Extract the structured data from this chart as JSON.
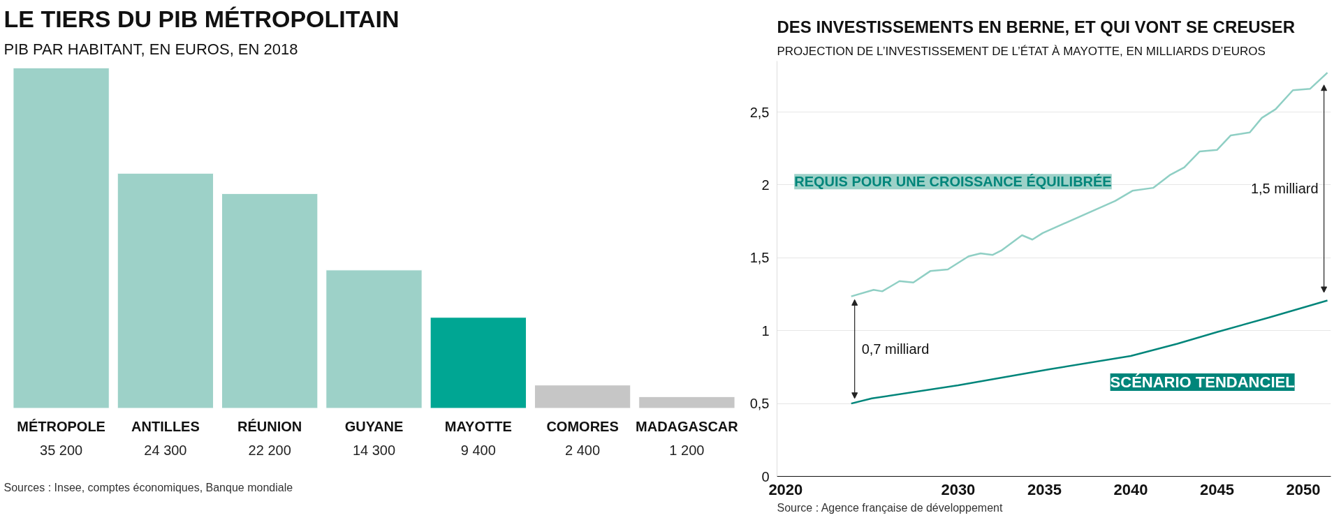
{
  "chart_data": [
    {
      "type": "bar",
      "title": "LE TIERS DU PIB MÉTROPOLITAIN",
      "subtitle": "PIB PAR HABITANT, EN EUROS, EN 2018",
      "categories": [
        "MÉTROPOLE",
        "ANTILLES",
        "RÉUNION",
        "GUYANE",
        "MAYOTTE",
        "COMORES",
        "MADAGASCAR"
      ],
      "values": [
        35200,
        24300,
        22200,
        14300,
        9400,
        2400,
        1200
      ],
      "value_labels": [
        "35 200",
        "24 300",
        "22 200",
        "14 300",
        "9 400",
        "2 400",
        "1 200"
      ],
      "colors": [
        "#9dd1c8",
        "#9dd1c8",
        "#9dd1c8",
        "#9dd1c8",
        "#00a693",
        "#c6c6c6",
        "#c6c6c6"
      ],
      "annotations": [
        "Sources : Insee, comptes économiques, Banque mondiale"
      ]
    },
    {
      "type": "line",
      "title": "DES INVESTISSEMENTS EN BERNE, ET QUI VONT SE CREUSER",
      "subtitle": "PROJECTION DE L’INVESTISSEMENT DE L’ÉTAT À MAYOTTE, EN MILLIARDS D’EUROS",
      "series": [
        {
          "name": "REQUIS POUR UNE CROISSANCE ÉQUILIBRÉE",
          "color": "#8fcfc4",
          "x": [
            2023.8,
            2025.1,
            2025.6,
            2026.6,
            2027.4,
            2028.4,
            2029.4,
            2030.6,
            2031.3,
            2032.0,
            2032.5,
            2033.7,
            2034.3,
            2034.9,
            2039.1,
            2040.1,
            2041.3,
            2042.3,
            2043.1,
            2044.0,
            2045.0,
            2045.8,
            2046.9,
            2047.6,
            2048.4,
            2049.4,
            2050.4,
            2051.4
          ],
          "values": [
            1.235,
            1.28,
            1.27,
            1.34,
            1.33,
            1.41,
            1.42,
            1.51,
            1.53,
            1.52,
            1.55,
            1.655,
            1.625,
            1.67,
            1.89,
            1.96,
            1.98,
            2.07,
            2.12,
            2.23,
            2.24,
            2.34,
            2.36,
            2.46,
            2.52,
            2.65,
            2.66,
            2.77
          ]
        },
        {
          "name": "SCÉNARIO TENDANCIEL",
          "color": "#00857a",
          "x": [
            2023.8,
            2025,
            2030,
            2035.3,
            2040,
            2042.7,
            2045,
            2048,
            2051.4
          ],
          "values": [
            0.5,
            0.535,
            0.625,
            0.735,
            0.826,
            0.91,
            0.99,
            1.09,
            1.207
          ]
        }
      ],
      "xlim": [
        2019.5,
        2051.6
      ],
      "xticks": [
        2020,
        2030,
        2035,
        2040,
        2045,
        2050
      ],
      "ylim": [
        0,
        2.85
      ],
      "yticks": [
        0,
        {
          "value": 0.5,
          "label": "0,5"
        },
        1,
        {
          "value": 1.5,
          "label": "1,5"
        },
        2,
        {
          "value": 2.5,
          "label": "2,5"
        }
      ],
      "grid": "y",
      "annotations": [
        "0,7 milliard",
        "1,5 milliard",
        "Source : Agence française de développement"
      ]
    }
  ]
}
